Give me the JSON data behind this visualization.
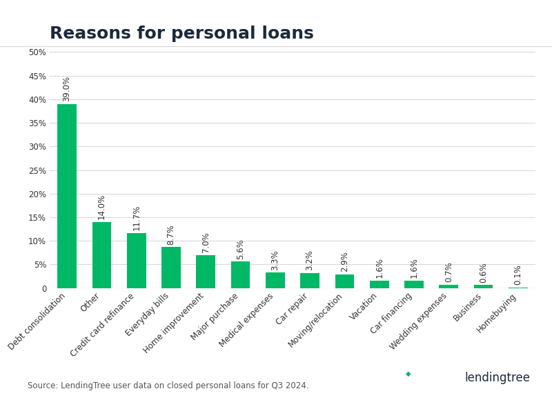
{
  "title": "Reasons for personal loans",
  "categories": [
    "Debt consolidation",
    "Other",
    "Credit card refinance",
    "Everyday bills",
    "Home improvement",
    "Major purchase",
    "Medical expenses",
    "Car repair",
    "Moving/relocation",
    "Vacation",
    "Car financing",
    "Wedding expenses",
    "Business",
    "Homebuying"
  ],
  "values": [
    39.0,
    14.0,
    11.7,
    8.7,
    7.0,
    5.6,
    3.3,
    3.2,
    2.9,
    1.6,
    1.6,
    0.7,
    0.6,
    0.1
  ],
  "bar_color": "#00b865",
  "background_color": "#ffffff",
  "ylim": [
    0,
    50
  ],
  "yticks": [
    0,
    5,
    10,
    15,
    20,
    25,
    30,
    35,
    40,
    45,
    50
  ],
  "source_text": "Source: LendingTree user data on closed personal loans for Q3 2024.",
  "title_fontsize": 18,
  "label_fontsize": 8.5,
  "tick_fontsize": 8.5,
  "source_fontsize": 8.5,
  "title_color": "#1b2a3b",
  "tick_color": "#333333",
  "grid_color": "#d8d8d8",
  "logo_color": "#1b2a3b",
  "logo_leaf_color": "#00b865"
}
